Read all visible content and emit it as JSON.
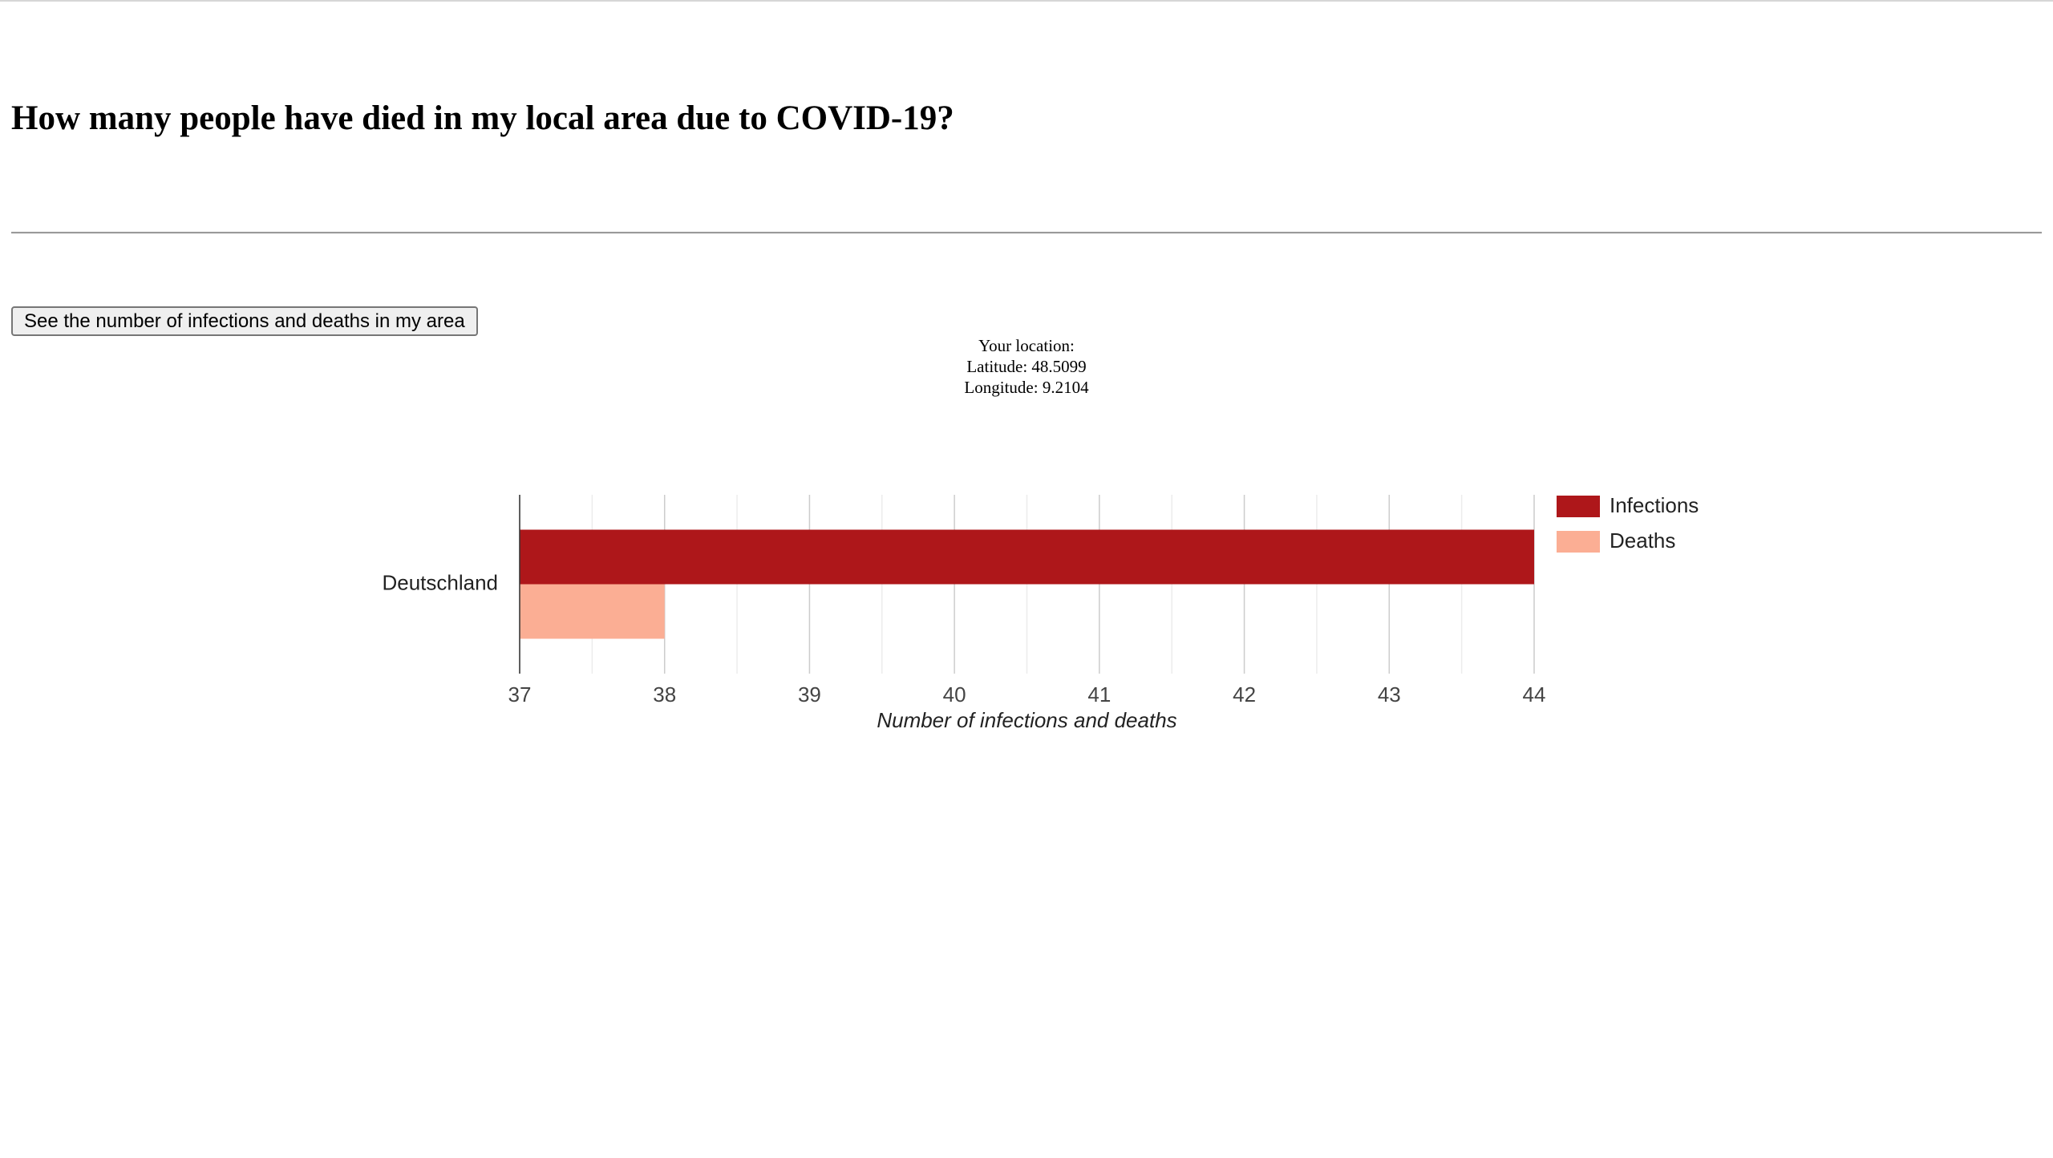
{
  "page": {
    "heading": "How many people have died in my local area due to COVID-19?",
    "button_label": "See the number of infections and deaths in my area"
  },
  "location": {
    "title": "Your location:",
    "latitude_text": "Latitude: 48.5099",
    "longitude_text": "Longitude: 9.2104"
  },
  "chart_data": {
    "type": "bar",
    "orientation": "horizontal",
    "categories": [
      "Deutschland"
    ],
    "series": [
      {
        "name": "Infections",
        "values": [
          44
        ],
        "color": "#ae171a"
      },
      {
        "name": "Deaths",
        "values": [
          38
        ],
        "color": "#fbae94"
      }
    ],
    "xlabel": "Number of infections and deaths",
    "ylabel": "",
    "xlim": [
      37,
      44
    ],
    "x_ticks": [
      "37",
      "38",
      "39",
      "40",
      "41",
      "42",
      "43",
      "44"
    ],
    "grid": true,
    "legend_position": "right"
  }
}
